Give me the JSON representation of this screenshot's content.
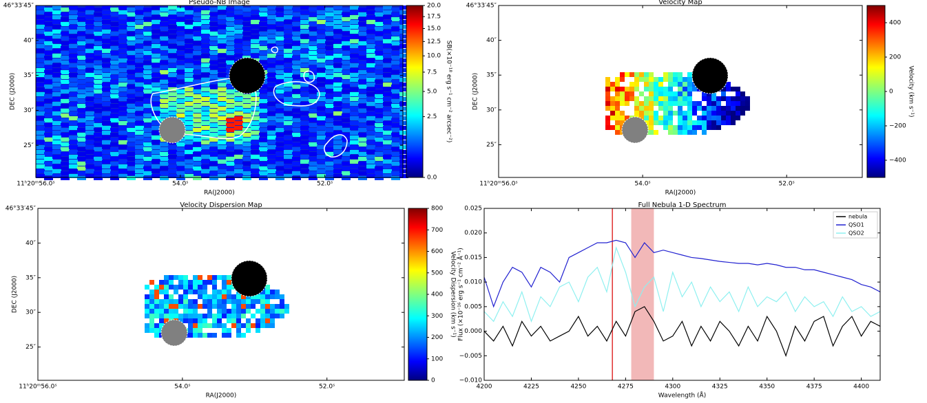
{
  "chart_data": [
    {
      "type": "image",
      "title": "Pseudo-NB Image",
      "xlabel": "RA(J2000)",
      "ylabel": "DEC (J2000)",
      "colormap": "jet",
      "xlim": [
        56.0,
        50.92
      ],
      "xticks": [
        {
          "value": 56,
          "label": "11ʰ20ᵐ56.0ˢ"
        },
        {
          "value": 54,
          "label": "54.0ˢ"
        },
        {
          "value": 52,
          "label": "52.0ˢ"
        }
      ],
      "ylim": [
        20.4,
        45
      ],
      "yticks": [
        {
          "value": 45,
          "label": "46°33′45″"
        },
        {
          "value": 40,
          "label": "40″"
        },
        {
          "value": 35,
          "label": "35″"
        },
        {
          "value": 30,
          "label": "30″"
        },
        {
          "value": 25,
          "label": "25″"
        }
      ],
      "colorbar": {
        "label": "SB(×10⁻¹⁸ erg s⁻¹ cm⁻² arcsec⁻²)",
        "lim": [
          0,
          20
        ],
        "scale": "sqrt",
        "ticks": [
          {
            "value": 0,
            "label": "0.0"
          },
          {
            "value": 2.5,
            "label": "2.5"
          },
          {
            "value": 5,
            "label": "5.0"
          },
          {
            "value": 7.5,
            "label": "7.5"
          },
          {
            "value": 10,
            "label": "10.0"
          },
          {
            "value": 12.5,
            "label": "12.5"
          },
          {
            "value": 15,
            "label": "15.0"
          },
          {
            "value": 17.5,
            "label": "17.5"
          },
          {
            "value": 20,
            "label": "20.0"
          }
        ]
      }
    },
    {
      "type": "image",
      "title": "Velocity Map",
      "xlabel": "RA(J2000)",
      "ylabel": "DEC (J2000)",
      "colormap": "jet",
      "xlim": [
        56.0,
        50.95
      ],
      "xticks": [
        {
          "value": 56,
          "label": "11ʰ20ᵐ56.0ˢ"
        },
        {
          "value": 54,
          "label": "54.0ˢ"
        },
        {
          "value": 52,
          "label": "52.0ˢ"
        }
      ],
      "ylim": [
        20.3,
        45
      ],
      "yticks": [
        {
          "value": 45,
          "label": "46°33′45″"
        },
        {
          "value": 40,
          "label": "40″"
        },
        {
          "value": 35,
          "label": "35″"
        },
        {
          "value": 30,
          "label": "30″"
        },
        {
          "value": 25,
          "label": "25″"
        }
      ],
      "colorbar": {
        "label": "Velocity (km s⁻¹)",
        "lim": [
          -500,
          500
        ],
        "scale": "linear",
        "ticks": [
          {
            "value": -400,
            "label": "−400"
          },
          {
            "value": -200,
            "label": "−200"
          },
          0,
          200,
          400
        ]
      }
    },
    {
      "type": "image",
      "title": "Velocity Dispersion Map",
      "xlabel": "RA(J2000)",
      "ylabel": "DEC (J2000)",
      "colormap": "jet",
      "xlim": [
        56.0,
        50.93
      ],
      "xticks": [
        {
          "value": 56,
          "label": "11ʰ20ᵐ56.0ˢ"
        },
        {
          "value": 54,
          "label": "54.0ˢ"
        },
        {
          "value": 52,
          "label": "52.0ˢ"
        }
      ],
      "ylim": [
        20.2,
        45
      ],
      "yticks": [
        {
          "value": 45,
          "label": "46°33′45″"
        },
        {
          "value": 40,
          "label": "40″"
        },
        {
          "value": 35,
          "label": "35″"
        },
        {
          "value": 30,
          "label": "30″"
        },
        {
          "value": 25,
          "label": "25″"
        }
      ],
      "colorbar": {
        "label": "Velocity Dispersion (km s⁻¹)",
        "lim": [
          0,
          800
        ],
        "scale": "linear",
        "ticks": [
          0,
          100,
          200,
          300,
          400,
          500,
          600,
          700,
          800
        ]
      }
    },
    {
      "type": "line",
      "title": "Full Nebula 1-D Spectrum",
      "xlabel": "Wavelength (Å)",
      "ylabel": "Flux (×10⁻¹⁶ erg s⁻¹ cm⁻² Å⁻¹)",
      "xlim": [
        4200,
        4410
      ],
      "xticks": [
        4200,
        4225,
        4250,
        4275,
        4300,
        4325,
        4350,
        4375,
        4400
      ],
      "ylim": [
        -0.01,
        0.025
      ],
      "yticks": [
        {
          "value": -0.01,
          "label": "−0.010"
        },
        {
          "value": -0.005,
          "label": "−0.005"
        },
        {
          "value": 0,
          "label": "0.000"
        },
        {
          "value": 0.005,
          "label": "0.005"
        },
        {
          "value": 0.01,
          "label": "0.010"
        },
        {
          "value": 0.015,
          "label": "0.015"
        },
        {
          "value": 0.02,
          "label": "0.020"
        },
        {
          "value": 0.025,
          "label": "0.025"
        }
      ],
      "vline": 4268,
      "vline_color": "#e03030",
      "span": [
        4278,
        4290
      ],
      "span_color": "#f2b8b8",
      "legend": "upper right",
      "x": [
        4200,
        4205,
        4210,
        4215,
        4220,
        4225,
        4230,
        4235,
        4240,
        4245,
        4250,
        4255,
        4260,
        4265,
        4270,
        4275,
        4280,
        4285,
        4290,
        4295,
        4300,
        4305,
        4310,
        4315,
        4320,
        4325,
        4330,
        4335,
        4340,
        4345,
        4350,
        4355,
        4360,
        4365,
        4370,
        4375,
        4380,
        4385,
        4390,
        4395,
        4400,
        4405,
        4410
      ],
      "series": [
        {
          "name": "nebula",
          "color": "#000000",
          "values": [
            0.0,
            -0.002,
            0.001,
            -0.003,
            0.002,
            -0.001,
            0.001,
            -0.002,
            -0.001,
            0.0,
            0.003,
            -0.001,
            0.001,
            -0.002,
            0.002,
            -0.001,
            0.004,
            0.005,
            0.002,
            -0.002,
            -0.001,
            0.002,
            -0.003,
            0.001,
            -0.002,
            0.002,
            0.0,
            -0.003,
            0.001,
            -0.002,
            0.003,
            0.0,
            -0.005,
            0.001,
            -0.002,
            0.002,
            0.003,
            -0.003,
            0.001,
            0.003,
            -0.001,
            0.002,
            0.001
          ]
        },
        {
          "name": "QSO1",
          "color": "#2020d0",
          "values": [
            0.011,
            0.005,
            0.01,
            0.013,
            0.012,
            0.009,
            0.013,
            0.012,
            0.01,
            0.015,
            0.016,
            0.017,
            0.018,
            0.018,
            0.0185,
            0.018,
            0.015,
            0.018,
            0.016,
            0.0165,
            0.016,
            0.0155,
            0.015,
            0.0148,
            0.0145,
            0.0142,
            0.014,
            0.0138,
            0.0138,
            0.0135,
            0.0138,
            0.0135,
            0.013,
            0.013,
            0.0125,
            0.0125,
            0.012,
            0.0115,
            0.011,
            0.0105,
            0.0095,
            0.009,
            0.008
          ]
        },
        {
          "name": "QSO2",
          "color": "#8ef0f0",
          "values": [
            0.004,
            0.002,
            0.006,
            0.003,
            0.008,
            0.002,
            0.007,
            0.005,
            0.009,
            0.01,
            0.006,
            0.011,
            0.013,
            0.008,
            0.017,
            0.012,
            0.005,
            0.009,
            0.011,
            0.004,
            0.012,
            0.007,
            0.01,
            0.005,
            0.009,
            0.006,
            0.008,
            0.004,
            0.009,
            0.005,
            0.007,
            0.006,
            0.008,
            0.004,
            0.007,
            0.005,
            0.006,
            0.003,
            0.007,
            0.004,
            0.005,
            0.003,
            0.004
          ]
        }
      ]
    }
  ]
}
